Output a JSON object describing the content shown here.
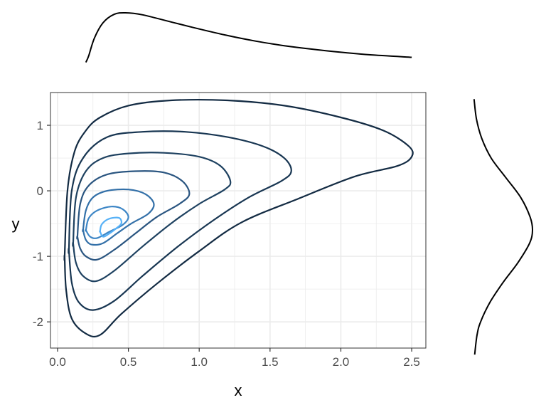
{
  "chart_data": {
    "type": "contour",
    "title": "",
    "xlabel": "x",
    "ylabel": "y",
    "xlim": [
      -0.05,
      2.6
    ],
    "ylim": [
      -2.4,
      1.5
    ],
    "x_ticks": [
      0.0,
      0.5,
      1.0,
      1.5,
      2.0,
      2.5
    ],
    "x_tick_labels": [
      "0.0",
      "0.5",
      "1.0",
      "1.5",
      "2.0",
      "2.5"
    ],
    "y_ticks": [
      -2,
      -1,
      0,
      1
    ],
    "y_tick_labels": [
      "-2",
      "-1",
      "0",
      "1"
    ],
    "grid": true,
    "background": "#ffffff",
    "grid_color": "#ebebeb",
    "contours": [
      {
        "level": 1,
        "color": "#132b43",
        "points": [
          [
            0.05,
            -1.0
          ],
          [
            0.07,
            0.0
          ],
          [
            0.12,
            0.6
          ],
          [
            0.2,
            0.92
          ],
          [
            0.3,
            1.12
          ],
          [
            0.5,
            1.3
          ],
          [
            0.8,
            1.38
          ],
          [
            1.2,
            1.38
          ],
          [
            1.6,
            1.3
          ],
          [
            2.0,
            1.12
          ],
          [
            2.3,
            0.92
          ],
          [
            2.48,
            0.68
          ],
          [
            2.5,
            0.52
          ],
          [
            2.4,
            0.38
          ],
          [
            2.1,
            0.22
          ],
          [
            1.7,
            -0.12
          ],
          [
            1.3,
            -0.48
          ],
          [
            1.0,
            -0.92
          ],
          [
            0.7,
            -1.42
          ],
          [
            0.45,
            -1.88
          ],
          [
            0.3,
            -2.2
          ],
          [
            0.2,
            -2.18
          ],
          [
            0.1,
            -1.95
          ],
          [
            0.06,
            -1.5
          ],
          [
            0.05,
            -1.0
          ]
        ]
      },
      {
        "level": 2,
        "color": "#183652",
        "points": [
          [
            0.08,
            -0.9
          ],
          [
            0.1,
            0.0
          ],
          [
            0.18,
            0.5
          ],
          [
            0.35,
            0.82
          ],
          [
            0.6,
            0.9
          ],
          [
            0.9,
            0.9
          ],
          [
            1.2,
            0.82
          ],
          [
            1.45,
            0.68
          ],
          [
            1.6,
            0.5
          ],
          [
            1.65,
            0.3
          ],
          [
            1.58,
            0.15
          ],
          [
            1.35,
            -0.1
          ],
          [
            1.1,
            -0.45
          ],
          [
            0.85,
            -0.85
          ],
          [
            0.6,
            -1.3
          ],
          [
            0.4,
            -1.68
          ],
          [
            0.25,
            -1.82
          ],
          [
            0.15,
            -1.7
          ],
          [
            0.1,
            -1.4
          ],
          [
            0.08,
            -0.9
          ]
        ]
      },
      {
        "level": 3,
        "color": "#1e4160",
        "points": [
          [
            0.11,
            -0.8
          ],
          [
            0.13,
            -0.1
          ],
          [
            0.2,
            0.3
          ],
          [
            0.32,
            0.5
          ],
          [
            0.5,
            0.57
          ],
          [
            0.75,
            0.58
          ],
          [
            1.0,
            0.52
          ],
          [
            1.15,
            0.38
          ],
          [
            1.22,
            0.15
          ],
          [
            1.18,
            0.02
          ],
          [
            1.0,
            -0.2
          ],
          [
            0.8,
            -0.5
          ],
          [
            0.6,
            -0.85
          ],
          [
            0.4,
            -1.22
          ],
          [
            0.27,
            -1.38
          ],
          [
            0.18,
            -1.3
          ],
          [
            0.13,
            -1.1
          ],
          [
            0.11,
            -0.8
          ]
        ]
      },
      {
        "level": 4,
        "color": "#2a5580",
        "points": [
          [
            0.14,
            -0.7
          ],
          [
            0.16,
            -0.2
          ],
          [
            0.22,
            0.08
          ],
          [
            0.35,
            0.25
          ],
          [
            0.55,
            0.3
          ],
          [
            0.75,
            0.28
          ],
          [
            0.88,
            0.15
          ],
          [
            0.93,
            -0.05
          ],
          [
            0.86,
            -0.2
          ],
          [
            0.7,
            -0.4
          ],
          [
            0.55,
            -0.65
          ],
          [
            0.4,
            -0.9
          ],
          [
            0.28,
            -1.05
          ],
          [
            0.2,
            -1.0
          ],
          [
            0.16,
            -0.88
          ],
          [
            0.14,
            -0.7
          ]
        ]
      },
      {
        "level": 5,
        "color": "#3370a8",
        "points": [
          [
            0.18,
            -0.6
          ],
          [
            0.2,
            -0.3
          ],
          [
            0.25,
            -0.1
          ],
          [
            0.35,
            0.0
          ],
          [
            0.5,
            0.02
          ],
          [
            0.62,
            -0.05
          ],
          [
            0.68,
            -0.2
          ],
          [
            0.64,
            -0.35
          ],
          [
            0.52,
            -0.5
          ],
          [
            0.42,
            -0.65
          ],
          [
            0.32,
            -0.8
          ],
          [
            0.24,
            -0.82
          ],
          [
            0.2,
            -0.75
          ],
          [
            0.18,
            -0.6
          ]
        ]
      },
      {
        "level": 6,
        "color": "#3d86c6",
        "points": [
          [
            0.2,
            -0.6
          ],
          [
            0.22,
            -0.42
          ],
          [
            0.28,
            -0.3
          ],
          [
            0.38,
            -0.24
          ],
          [
            0.46,
            -0.28
          ],
          [
            0.5,
            -0.4
          ],
          [
            0.46,
            -0.52
          ],
          [
            0.37,
            -0.62
          ],
          [
            0.28,
            -0.72
          ],
          [
            0.23,
            -0.7
          ],
          [
            0.2,
            -0.6
          ]
        ]
      },
      {
        "level": 7,
        "color": "#56b1f7",
        "points": [
          [
            0.3,
            -0.62
          ],
          [
            0.31,
            -0.52
          ],
          [
            0.35,
            -0.44
          ],
          [
            0.4,
            -0.41
          ],
          [
            0.44,
            -0.42
          ],
          [
            0.45,
            -0.5
          ],
          [
            0.41,
            -0.58
          ],
          [
            0.36,
            -0.66
          ],
          [
            0.32,
            -0.7
          ],
          [
            0.3,
            -0.62
          ]
        ]
      }
    ],
    "marginal_x": {
      "x": [
        0.2,
        0.22,
        0.26,
        0.32,
        0.4,
        0.48,
        0.6,
        0.8,
        1.0,
        1.2,
        1.4,
        1.6,
        1.8,
        2.0,
        2.2,
        2.5
      ],
      "density": [
        0.02,
        0.15,
        0.5,
        0.8,
        0.97,
        1.0,
        0.96,
        0.82,
        0.68,
        0.55,
        0.44,
        0.35,
        0.28,
        0.22,
        0.17,
        0.12
      ]
    },
    "marginal_y": {
      "y": [
        -2.5,
        -2.2,
        -2.0,
        -1.7,
        -1.4,
        -1.1,
        -0.8,
        -0.6,
        -0.4,
        -0.1,
        0.2,
        0.5,
        0.8,
        1.1,
        1.4
      ],
      "density": [
        0.02,
        0.06,
        0.12,
        0.28,
        0.5,
        0.75,
        0.95,
        1.0,
        0.96,
        0.8,
        0.55,
        0.3,
        0.14,
        0.05,
        0.01
      ]
    }
  }
}
